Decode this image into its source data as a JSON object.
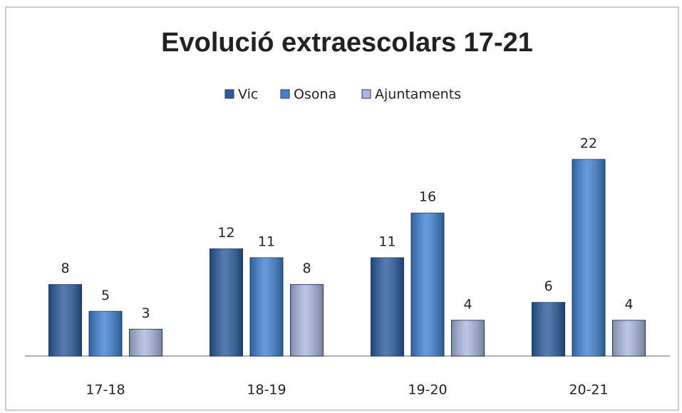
{
  "chart_data": {
    "type": "bar",
    "title": "Evolució extraescolars 17-21",
    "categories": [
      "17-18",
      "18-19",
      "19-20",
      "20-21"
    ],
    "series": [
      {
        "name": "Vic",
        "color": "#2b5c9e",
        "values": [
          8,
          12,
          11,
          6
        ]
      },
      {
        "name": "Osona",
        "color": "#4082d2",
        "values": [
          5,
          11,
          16,
          22
        ]
      },
      {
        "name": "Ajuntaments",
        "color": "#aab8de",
        "values": [
          3,
          8,
          4,
          4
        ]
      }
    ],
    "legend": "top",
    "grid": false
  }
}
